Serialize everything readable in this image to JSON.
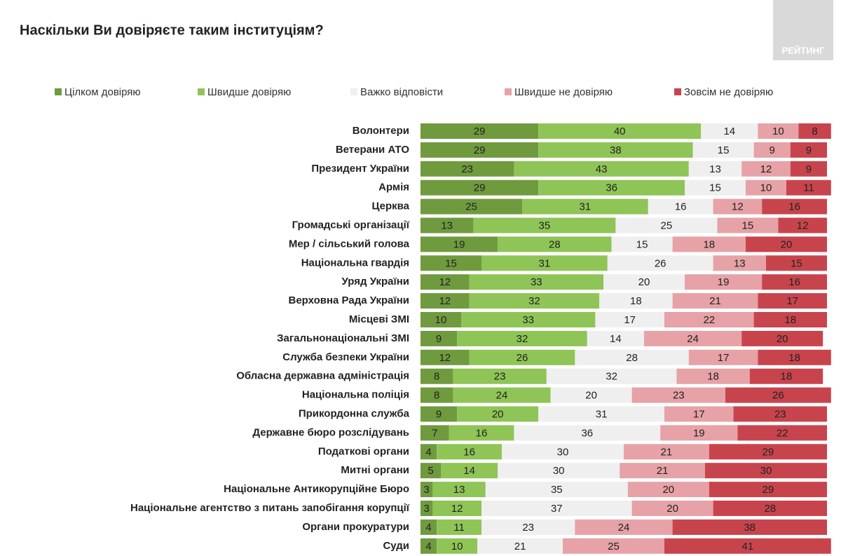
{
  "logo": "РЕЙТИНГ",
  "chart_data": {
    "type": "stacked-bar-horizontal",
    "title": "Наскільки Ви довіряєте таким інституціям?",
    "categories": [
      "Волонтери",
      "Ветерани АТО",
      "Президент України",
      "Армія",
      "Церква",
      "Громадські організації",
      "Мер / сільський голова",
      "Національна гвардія",
      "Уряд України",
      "Верховна Рада України",
      "Місцеві ЗМІ",
      "Загальнонаціональні ЗМІ",
      "Служба безпеки України",
      "Обласна державна адміністрація",
      "Національна поліція",
      "Прикордонна служба",
      "Державне бюро розслідувань",
      "Податкові органи",
      "Митні органи",
      "Національне Антикорупційне Бюро",
      "Національне агентство з питань запобігання корупції",
      "Органи прокуратури",
      "Суди"
    ],
    "series": [
      {
        "name": "Цілком довіряю",
        "color": "#6f9a3e",
        "values": [
          29,
          29,
          23,
          29,
          25,
          13,
          19,
          15,
          12,
          12,
          10,
          9,
          12,
          8,
          8,
          9,
          7,
          4,
          5,
          3,
          3,
          4,
          4
        ]
      },
      {
        "name": "Швидше довіряю",
        "color": "#8fc456",
        "values": [
          40,
          38,
          43,
          36,
          31,
          35,
          28,
          31,
          33,
          32,
          33,
          32,
          26,
          23,
          24,
          20,
          16,
          16,
          14,
          13,
          12,
          11,
          10
        ]
      },
      {
        "name": "Важко відповісти",
        "color": "#efefef",
        "values": [
          14,
          15,
          13,
          15,
          16,
          25,
          15,
          26,
          20,
          18,
          17,
          14,
          28,
          32,
          20,
          31,
          36,
          30,
          30,
          35,
          37,
          23,
          21
        ]
      },
      {
        "name": "Швидше не довіряю",
        "color": "#e6a2a6",
        "values": [
          10,
          9,
          12,
          10,
          12,
          15,
          18,
          13,
          19,
          21,
          22,
          24,
          17,
          18,
          23,
          17,
          19,
          21,
          21,
          20,
          20,
          24,
          25
        ]
      },
      {
        "name": "Зовсім не довіряю",
        "color": "#c8444d",
        "values": [
          8,
          9,
          9,
          11,
          16,
          12,
          20,
          15,
          16,
          17,
          18,
          20,
          18,
          18,
          26,
          23,
          22,
          29,
          30,
          29,
          28,
          38,
          41
        ]
      }
    ]
  }
}
